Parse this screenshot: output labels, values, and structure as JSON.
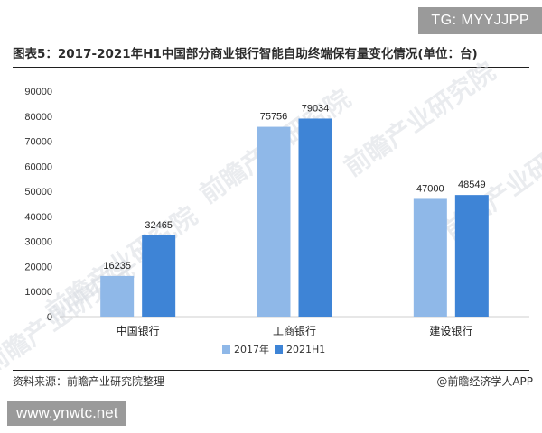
{
  "badge_top": "TG: MYYJJPP",
  "title": "图表5：2017-2021年H1中国部分商业银行智能自助终端保有量变化情况(单位：台)",
  "watermark": "前瞻产业研究院",
  "source": "资料来源：前瞻产业研究院整理",
  "credit": "@前瞻经济学人APP",
  "badge_bottom": "www.ynwtc.net",
  "colors": {
    "series_2017": "#8fb8e8",
    "series_2021": "#3e84d6"
  },
  "chart_data": {
    "type": "bar",
    "title": "图表5：2017-2021年H1中国部分商业银行智能自助终端保有量变化情况(单位：台)",
    "categories": [
      "中国银行",
      "工商银行",
      "建设银行"
    ],
    "series": [
      {
        "name": "2017年",
        "values": [
          16235,
          75756,
          47000
        ]
      },
      {
        "name": "2021H1",
        "values": [
          32465,
          79034,
          48549
        ]
      }
    ],
    "ylim": [
      0,
      90000
    ],
    "yticks": [
      "0",
      "10000",
      "20000",
      "30000",
      "40000",
      "50000",
      "60000",
      "70000",
      "80000",
      "90000"
    ],
    "grid": false,
    "legend": "bottom-center",
    "xlabel": "",
    "ylabel": ""
  }
}
